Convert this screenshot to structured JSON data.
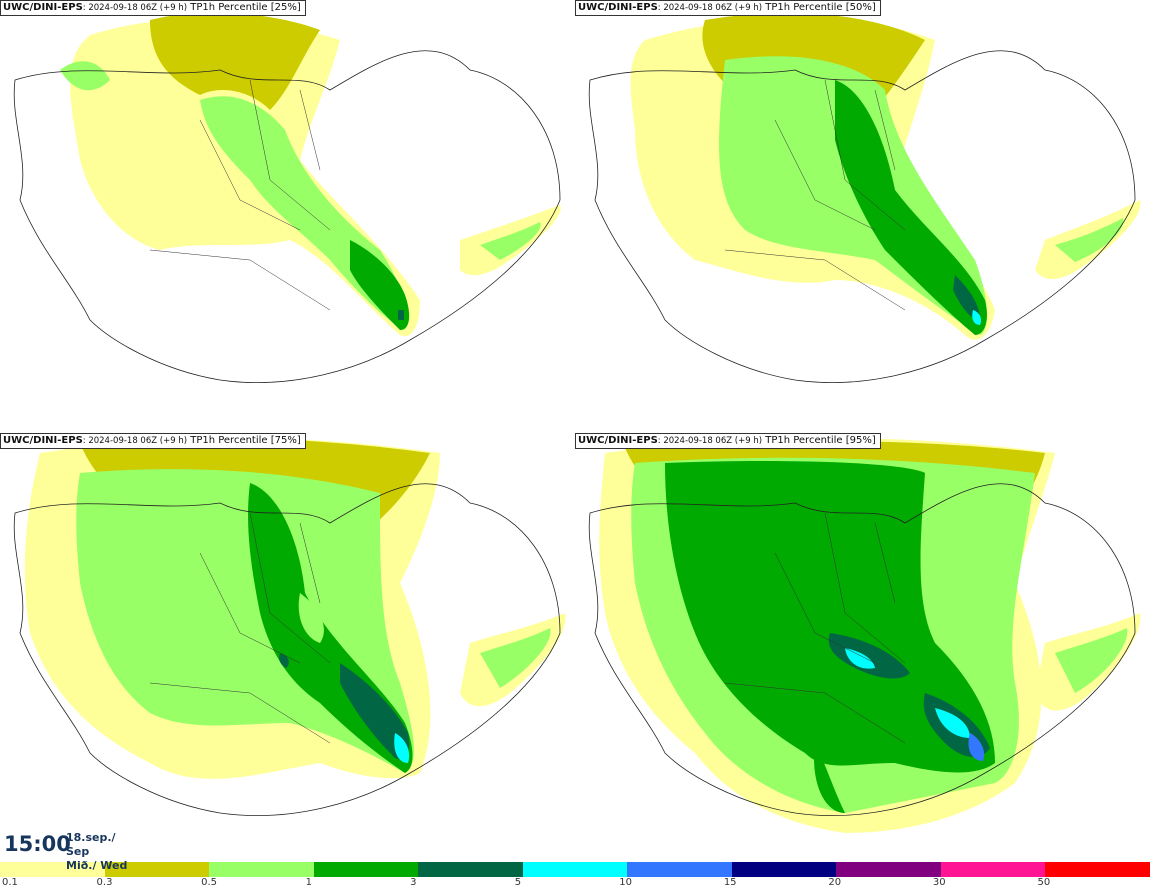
{
  "panels": [
    {
      "model": "UWC/DINI-EPS",
      "run": ": 2024-09-18 06Z (+9 h)",
      "product": " TP1h Percentile [25%]"
    },
    {
      "model": "UWC/DINI-EPS",
      "run": ": 2024-09-18 06Z (+9 h)",
      "product": " TP1h Percentile [50%]"
    },
    {
      "model": "UWC/DINI-EPS",
      "run": ": 2024-09-18 06Z (+9 h)",
      "product": " TP1h Percentile [75%]"
    },
    {
      "model": "UWC/DINI-EPS",
      "run": ": 2024-09-18 06Z (+9 h)",
      "product": " TP1h Percentile [95%]"
    }
  ],
  "valid_time": {
    "time": "15:00",
    "date_line1": "18.sep./ Sep",
    "date_line2": "Mið./ Wed"
  },
  "colorscale": {
    "colors": [
      "#ffff99",
      "#cccc00",
      "#99ff66",
      "#00aa00",
      "#006644",
      "#00ffff",
      "#3377ff",
      "#000080",
      "#800080",
      "#ff1493",
      "#ff0000"
    ],
    "ticks": [
      "0.1",
      "0.3",
      "0.5",
      "1",
      "3",
      "5",
      "10",
      "15",
      "20",
      "30",
      "50"
    ]
  }
}
